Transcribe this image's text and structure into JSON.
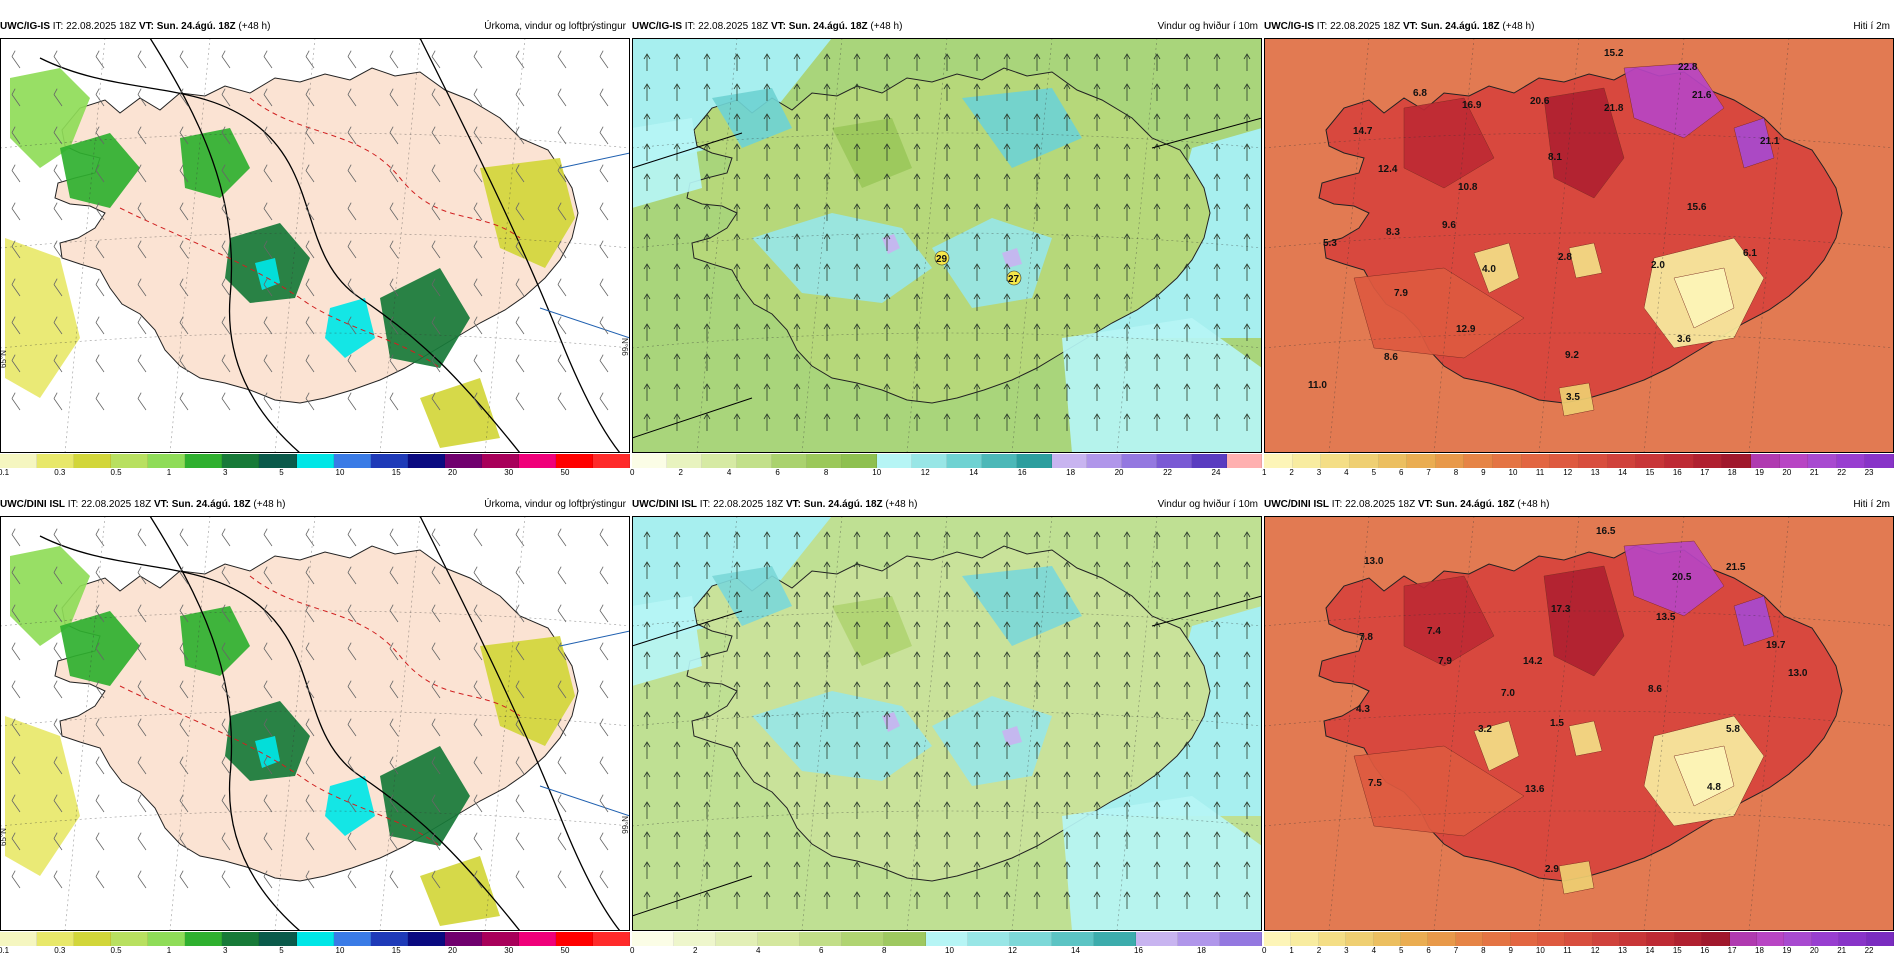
{
  "panels": [
    {
      "id": "p1",
      "model": "UWC/IG-IS",
      "it": " IT: 22.08.2025 18Z ",
      "vt_label": "VT:",
      "vt": " Sun. 24.ágú. 18Z",
      "lead": " (+48 h)",
      "title": "Úrkoma, vindur og loftþrýstingur",
      "palette": [
        "#f5f6c0",
        "#e8e86a",
        "#d2d63a",
        "#b8e060",
        "#8fdc58",
        "#2fb02f",
        "#177a38",
        "#0a5a4a",
        "#00e6e6",
        "#3a7be6",
        "#1e3ab8",
        "#0a0a80",
        "#70006e",
        "#a8005a",
        "#f0007a",
        "#ff0000",
        "#ff2a2a"
      ],
      "ticks": [
        "0.1",
        "0.3",
        "0.5",
        "1",
        "3",
        "5",
        "10",
        "15",
        "20",
        "30",
        "50"
      ],
      "lat_labels": [
        "65°N",
        "N°66"
      ],
      "annotations": [],
      "colors": {
        "bg": "#ffffff",
        "land": "#fbe3d3"
      }
    },
    {
      "id": "p2",
      "model": "UWC/IG-IS",
      "it": " IT: 22.08.2025 18Z ",
      "vt_label": "VT:",
      "vt": " Sun. 24.ágú. 18Z",
      "lead": " (+48 h)",
      "title": "Vindur og hviður í 10m",
      "palette": [
        "#fbfde6",
        "#e8f3bf",
        "#d6eaa4",
        "#c2e08a",
        "#aad26e",
        "#9bc85a",
        "#8ec050",
        "#b6f5f5",
        "#98e6e6",
        "#6fd2d2",
        "#4cb8b8",
        "#2c9e9e",
        "#c8b4f0",
        "#b096ea",
        "#9478e0",
        "#7a5ad4",
        "#5a3cc0",
        "#ffb0b0"
      ],
      "ticks": [
        "0",
        "2",
        "4",
        "6",
        "8",
        "10",
        "12",
        "14",
        "16",
        "18",
        "20",
        "22",
        "24"
      ],
      "annotations": [
        "29",
        "27"
      ],
      "colors": {
        "bg": "#a7efef",
        "land": "#b6d87a"
      }
    },
    {
      "id": "p3",
      "model": "UWC/IG-IS",
      "it": " IT: 22.08.2025 18Z ",
      "vt_label": "VT:",
      "vt": " Sun. 24.ágú. 18Z",
      "lead": " (+48 h)",
      "title": "Hiti í 2m",
      "palette": [
        "#fdf5b8",
        "#f8eca0",
        "#f4de86",
        "#efcf72",
        "#ecbf60",
        "#eaad52",
        "#e8994a",
        "#e68446",
        "#e47444",
        "#e26642",
        "#de5a40",
        "#d84e3e",
        "#d0423c",
        "#c83638",
        "#be2a34",
        "#b02030",
        "#a0182c",
        "#b03ab0",
        "#b845c4",
        "#a84ad0",
        "#983ed0",
        "#8834c8"
      ],
      "ticks": [
        "1",
        "2",
        "3",
        "4",
        "5",
        "6",
        "7",
        "8",
        "9",
        "10",
        "11",
        "12",
        "13",
        "14",
        "15",
        "16",
        "17",
        "18",
        "19",
        "20",
        "21",
        "22",
        "23"
      ],
      "annotations": [
        "15.2",
        "22.8",
        "6.8",
        "14.7",
        "16.9",
        "20.6",
        "21.8",
        "21.6",
        "21.1",
        "12.4",
        "8.1",
        "10.8",
        "15.6",
        "5.3",
        "8.3",
        "9.6",
        "4.0",
        "2.8",
        "2.0",
        "6.1",
        "7.9",
        "12.9",
        "8.6",
        "9.2",
        "3.6",
        "11.0",
        "3.5"
      ],
      "colors": {
        "bg": "#e27a52",
        "land": "#d8483e"
      }
    },
    {
      "id": "p4",
      "model": "UWC/DINI ISL",
      "it": " IT: 22.08.2025 18Z ",
      "vt_label": "VT:",
      "vt": " Sun. 24.ágú. 18Z",
      "lead": " (+48 h)",
      "title": "Úrkoma, vindur og loftþrýstingur",
      "palette": [
        "#f5f6c0",
        "#e8e86a",
        "#d2d63a",
        "#b8e060",
        "#8fdc58",
        "#2fb02f",
        "#177a38",
        "#0a5a4a",
        "#00e6e6",
        "#3a7be6",
        "#1e3ab8",
        "#0a0a80",
        "#70006e",
        "#a8005a",
        "#f0007a",
        "#ff0000",
        "#ff2a2a"
      ],
      "ticks": [
        "0.1",
        "0.3",
        "0.5",
        "1",
        "3",
        "5",
        "10",
        "15",
        "20",
        "30",
        "50"
      ],
      "lat_labels": [
        "65°N",
        "N°66"
      ],
      "annotations": [],
      "colors": {
        "bg": "#ffffff",
        "land": "#fbe3d3"
      }
    },
    {
      "id": "p5",
      "model": "UWC/DINI ISL",
      "it": " IT: 22.08.2025 18Z ",
      "vt_label": "VT:",
      "vt": " Sun. 24.ágú. 18Z",
      "lead": " (+48 h)",
      "title": "Vindur og hviður í 10m",
      "palette": [
        "#fbfde6",
        "#eef6cc",
        "#e2efb6",
        "#d4e79e",
        "#c2de88",
        "#b0d472",
        "#9ec860",
        "#b6f5f5",
        "#98e6e6",
        "#7cd8d8",
        "#5cc4c4",
        "#3cacac",
        "#c8b4f0",
        "#b096ea",
        "#9478e0"
      ],
      "ticks": [
        "0",
        "2",
        "4",
        "6",
        "8",
        "10",
        "12",
        "14",
        "16",
        "18"
      ],
      "annotations": [],
      "colors": {
        "bg": "#a7efef",
        "land": "#c9e29a"
      }
    },
    {
      "id": "p6",
      "model": "UWC/DINI ISL",
      "it": " IT: 22.08.2025 18Z ",
      "vt_label": "VT:",
      "vt": " Sun. 24.ágú. 18Z",
      "lead": " (+48 h)",
      "title": "Hiti í 2m",
      "palette": [
        "#fdf5b8",
        "#f8eca0",
        "#f4de86",
        "#efcf72",
        "#ecbf60",
        "#eaad52",
        "#e8994a",
        "#e68446",
        "#e47444",
        "#e26642",
        "#de5a40",
        "#d84e3e",
        "#d0423c",
        "#c83638",
        "#be2a34",
        "#b02030",
        "#a0182c",
        "#b03ab0",
        "#b845c4",
        "#a84ad0",
        "#983ed0",
        "#8834c8",
        "#7a2cc0"
      ],
      "ticks": [
        "0",
        "1",
        "2",
        "3",
        "4",
        "5",
        "6",
        "7",
        "8",
        "9",
        "10",
        "11",
        "12",
        "13",
        "14",
        "15",
        "16",
        "17",
        "18",
        "19",
        "20",
        "21",
        "22"
      ],
      "annotations": [
        "16.5",
        "13.0",
        "20.5",
        "21.5",
        "7.8",
        "7.4",
        "17.3",
        "13.5",
        "7.9",
        "14.2",
        "19.7",
        "13.0",
        "7.0",
        "4.3",
        "8.6",
        "3.2",
        "1.5",
        "5.8",
        "7.5",
        "13.6",
        "4.8",
        "2.9"
      ],
      "colors": {
        "bg": "#e27a52",
        "land": "#d8483e"
      }
    }
  ]
}
